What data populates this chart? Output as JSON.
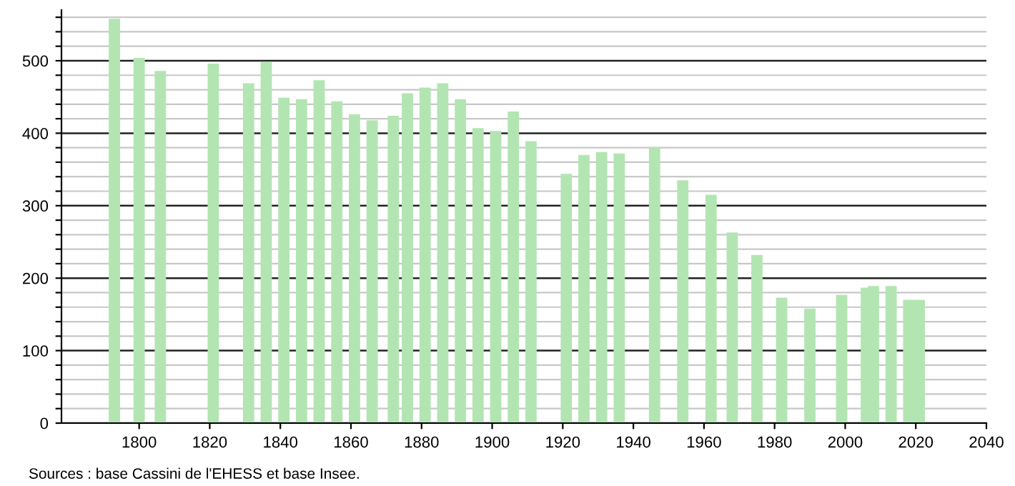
{
  "chart_data": {
    "type": "bar",
    "x": [
      1793,
      1800,
      1806,
      1821,
      1831,
      1836,
      1841,
      1846,
      1851,
      1856,
      1861,
      1866,
      1872,
      1876,
      1881,
      1886,
      1891,
      1896,
      1901,
      1906,
      1911,
      1921,
      1926,
      1931,
      1936,
      1946,
      1954,
      1962,
      1968,
      1975,
      1982,
      1990,
      1999,
      2006,
      2008,
      2013,
      2018,
      2021
    ],
    "values": [
      558,
      504,
      486,
      496,
      469,
      498,
      449,
      447,
      473,
      444,
      426,
      418,
      424,
      455,
      463,
      469,
      447,
      407,
      403,
      430,
      389,
      344,
      370,
      374,
      372,
      381,
      335,
      315,
      263,
      232,
      173,
      158,
      177,
      187,
      189,
      189,
      170,
      170
    ],
    "color": "#b3e5b3",
    "xlim": [
      1778,
      2040
    ],
    "xticks": [
      1800,
      1820,
      1840,
      1860,
      1880,
      1900,
      1920,
      1940,
      1960,
      1980,
      2000,
      2020,
      2040
    ],
    "ylim": [
      0,
      570
    ],
    "yticks": [
      0,
      {
        "value": 20,
        "label": null
      },
      {
        "value": 40,
        "label": null
      },
      {
        "value": 60,
        "label": null
      },
      {
        "value": 80,
        "label": null
      },
      100,
      {
        "value": 120,
        "label": null
      },
      {
        "value": 140,
        "label": null
      },
      {
        "value": 160,
        "label": null
      },
      {
        "value": 180,
        "label": null
      },
      200,
      {
        "value": 220,
        "label": null
      },
      {
        "value": 240,
        "label": null
      },
      {
        "value": 260,
        "label": null
      },
      {
        "value": 280,
        "label": null
      },
      300,
      {
        "value": 320,
        "label": null
      },
      {
        "value": 340,
        "label": null
      },
      {
        "value": 360,
        "label": null
      },
      {
        "value": 380,
        "label": null
      },
      400,
      {
        "value": 420,
        "label": null
      },
      {
        "value": 440,
        "label": null
      },
      {
        "value": 460,
        "label": null
      },
      {
        "value": 480,
        "label": null
      },
      500,
      {
        "value": 520,
        "label": null
      },
      {
        "value": 540,
        "label": null
      },
      {
        "value": 560,
        "label": null
      }
    ],
    "grid": "y",
    "annotations": [
      "Sources : base Cassini de l'EHESS et base Insee."
    ]
  }
}
